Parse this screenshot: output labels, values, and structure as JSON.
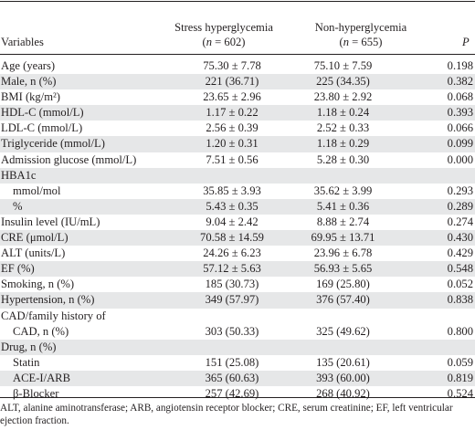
{
  "header": {
    "variables": "Variables",
    "group1_name": "Stress hyperglycemia",
    "group1_n": "(n = 602)",
    "group2_name": "Non-hyperglycemia",
    "group2_n": "(n = 655)",
    "p_label": "P"
  },
  "rows": [
    {
      "label": "Age (years)",
      "a": "75.30 ± 7.78",
      "b": "75.10 ± 7.59",
      "p": "0.198",
      "shade": false
    },
    {
      "label": "Male, n (%)",
      "a": "221 (36.71)",
      "b": "225 (34.35)",
      "p": "0.382",
      "shade": true
    },
    {
      "label": "BMI (kg/m²)",
      "a": "23.65 ± 2.96",
      "b": "23.80 ± 2.92",
      "p": "0.068",
      "shade": false
    },
    {
      "label": "HDL-C (mmol/L)",
      "a": "1.17 ± 0.22",
      "b": "1.18 ± 0.24",
      "p": "0.393",
      "shade": true
    },
    {
      "label": "LDL-C (mmol/L)",
      "a": "2.56 ± 0.39",
      "b": "2.52 ± 0.33",
      "p": "0.066",
      "shade": false
    },
    {
      "label": "Triglyceride (mmol/L)",
      "a": "1.20 ± 0.31",
      "b": "1.18 ± 0.29",
      "p": "0.099",
      "shade": true
    },
    {
      "label": "Admission glucose (mmol/L)",
      "a": "7.51 ± 0.56",
      "b": "5.28 ± 0.30",
      "p": "0.000",
      "shade": false
    },
    {
      "label": "HBA1c",
      "a": "",
      "b": "",
      "p": "",
      "shade": true
    },
    {
      "label": "mmol/mol",
      "a": "35.85 ± 3.93",
      "b": "35.62 ± 3.99",
      "p": "0.293",
      "shade": false,
      "indent": true
    },
    {
      "label": "%",
      "a": "5.43 ± 0.35",
      "b": "5.41 ± 0.36",
      "p": "0.289",
      "shade": true,
      "indent": true
    },
    {
      "label": "Insulin level (IU/mL)",
      "a": "9.04 ± 2.42",
      "b": "8.88 ± 2.74",
      "p": "0.274",
      "shade": false
    },
    {
      "label": "CRE (μmol/L)",
      "a": "70.58 ± 14.59",
      "b": "69.95 ± 13.71",
      "p": "0.430",
      "shade": true
    },
    {
      "label": "ALT (units/L)",
      "a": "24.26 ± 6.23",
      "b": "23.96 ± 6.78",
      "p": "0.429",
      "shade": false
    },
    {
      "label": "EF (%)",
      "a": "57.12 ± 5.63",
      "b": "56.93 ± 5.65",
      "p": "0.548",
      "shade": true
    },
    {
      "label": "Smoking, n (%)",
      "a": "185 (30.73)",
      "b": "169 (25.80)",
      "p": "0.052",
      "shade": false
    },
    {
      "label": "Hypertension, n (%)",
      "a": "349 (57.97)",
      "b": "376 (57.40)",
      "p": "0.838",
      "shade": true
    },
    {
      "label": "CAD/family history of",
      "a": "",
      "b": "",
      "p": "",
      "shade": false
    },
    {
      "label": "CAD, n (%)",
      "a": "303 (50.33)",
      "b": "325 (49.62)",
      "p": "0.800",
      "shade": false,
      "indent": true
    },
    {
      "label": "Drug, n (%)",
      "a": "",
      "b": "",
      "p": "",
      "shade": true
    },
    {
      "label": "Statin",
      "a": "151 (25.08)",
      "b": "135 (20.61)",
      "p": "0.059",
      "shade": false,
      "indent": true
    },
    {
      "label": "ACE-I/ARB",
      "a": "365 (60.63)",
      "b": "393 (60.00)",
      "p": "0.819",
      "shade": true,
      "indent": true
    },
    {
      "label": "β-Blocker",
      "a": "257 (42.69)",
      "b": "268 (40.92)",
      "p": "0.524",
      "shade": false,
      "indent": true
    }
  ],
  "footnote": "ALT, alanine aminotransferase; ARB, angiotensin receptor blocker; CRE, serum creatinine; EF, left ventricular ejection fraction."
}
